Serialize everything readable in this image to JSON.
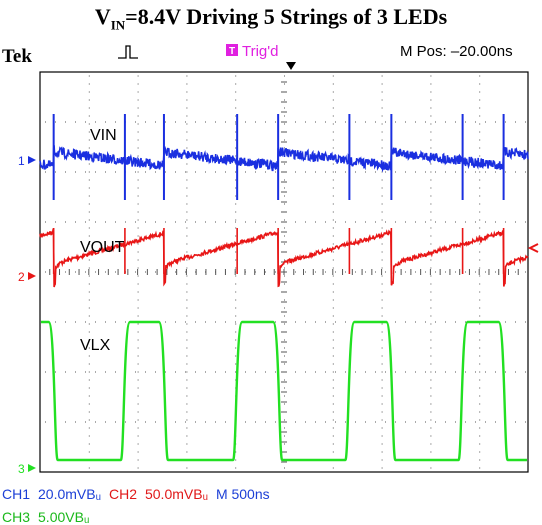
{
  "title": {
    "prefix": "V",
    "subscript": "IN",
    "rest": "=8.4V Driving 5 Strings of 3 LEDs"
  },
  "scope": {
    "brand": "Tek",
    "trigger_badge": "T",
    "trigger_status": "Trig'd",
    "m_pos": "M Pos: –20.00ns",
    "readout_line1": [
      {
        "text": "CH1",
        "color": "#1c3fd6"
      },
      {
        "text": "20.0mVBᵤ",
        "color": "#1c3fd6"
      },
      {
        "text": "CH2",
        "color": "#e01818"
      },
      {
        "text": "50.0mVBᵤ",
        "color": "#e01818"
      },
      {
        "text": "M 500ns",
        "color": "#1c3fd6"
      }
    ],
    "readout_line2": [
      {
        "text": "CH3",
        "color": "#1ab81a"
      },
      {
        "text": "5.00VBᵤ",
        "color": "#1ab81a"
      }
    ],
    "colors": {
      "ch1": "#1a2fe0",
      "ch2": "#e81616",
      "ch3": "#22e022",
      "grid": "#555555",
      "frame": "#000000",
      "trigger_badge_bg": "#e020e0"
    }
  },
  "chart_data": {
    "type": "line",
    "title": "VIN=8.4V Driving 5 Strings of 3 LEDs",
    "x_unit": "ns",
    "x_range": [
      -2500,
      2500
    ],
    "horizontal_scale": "500ns/div",
    "grid": true,
    "series": [
      {
        "name": "VIN",
        "channel": "CH1",
        "scale": "20.0mV/div",
        "coupling": "AC, BW limited",
        "shape": "sawtooth ripple with sharp spikes at switching edges",
        "approx_ripple_mV_pp": 40
      },
      {
        "name": "VOUT",
        "channel": "CH2",
        "scale": "50.0mV/div",
        "coupling": "AC, BW limited",
        "shape": "rising sawtooth ripple, drops at switch turn-on",
        "approx_ripple_mV_pp": 100
      },
      {
        "name": "VLX",
        "channel": "CH3",
        "scale": "5.00V/div",
        "shape": "square wave",
        "low_V": 0,
        "high_V": 14,
        "period_ns": 1170,
        "high_intervals_ns": [
          [
            -2500,
            -2360
          ],
          [
            -1630,
            -1230
          ],
          [
            -480,
            -60
          ],
          [
            670,
            1100
          ],
          [
            1830,
            2250
          ]
        ]
      }
    ]
  }
}
